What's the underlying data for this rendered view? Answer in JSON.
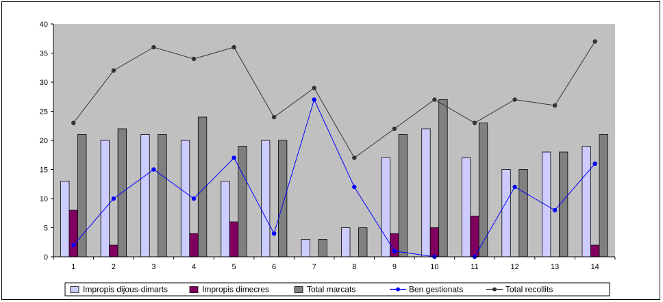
{
  "chart_data": {
    "type": "bar",
    "categories": [
      "1",
      "2",
      "3",
      "4",
      "5",
      "6",
      "7",
      "8",
      "9",
      "10",
      "11",
      "12",
      "13",
      "14"
    ],
    "series": [
      {
        "name": "Impropis dijous-dimarts",
        "kind": "bar",
        "color": "#ccccff",
        "values": [
          13,
          20,
          21,
          20,
          13,
          20,
          3,
          5,
          17,
          22,
          17,
          15,
          18,
          19
        ]
      },
      {
        "name": "Impropis dimecres",
        "kind": "bar",
        "color": "#800060",
        "values": [
          8,
          2,
          0,
          4,
          6,
          0,
          0,
          0,
          4,
          5,
          7,
          0,
          0,
          2
        ]
      },
      {
        "name": "Total marcats",
        "kind": "bar",
        "color": "#808080",
        "values": [
          21,
          22,
          21,
          24,
          19,
          20,
          3,
          5,
          21,
          27,
          23,
          15,
          18,
          21
        ]
      },
      {
        "name": "Ben gestionats",
        "kind": "line",
        "color": "#0000ff",
        "values": [
          2,
          10,
          15,
          10,
          17,
          4,
          27,
          12,
          1,
          0,
          0,
          12,
          8,
          16
        ]
      },
      {
        "name": "Total recollits",
        "kind": "line",
        "color": "#333333",
        "values": [
          23,
          32,
          36,
          34,
          36,
          24,
          29,
          17,
          22,
          27,
          23,
          27,
          26,
          37
        ]
      }
    ],
    "ylim": [
      0,
      40
    ],
    "yticks": [
      "0",
      "5",
      "10",
      "15",
      "20",
      "25",
      "30",
      "35",
      "40"
    ],
    "title": "",
    "xlabel": "",
    "ylabel": "",
    "grid": false,
    "legend_position": "bottom",
    "plot_background": "#c0c0c0"
  }
}
